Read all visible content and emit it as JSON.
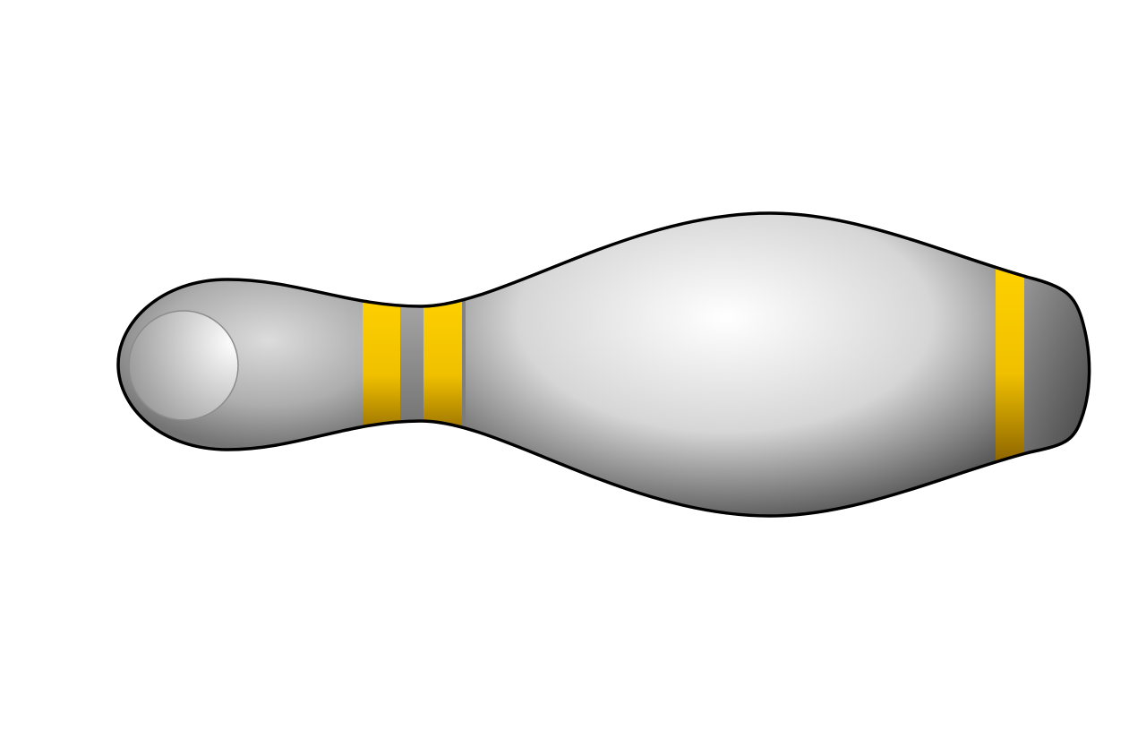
{
  "image": {
    "subject": "bowling-pin",
    "colors": {
      "background": "#ffffff",
      "outline": "#000000",
      "body_light": "#ffffff",
      "body_mid": "#d6d6d6",
      "body_dark": "#555555",
      "stripe_light": "#ffd200",
      "stripe_dark": "#8a6200",
      "band_gray": "#a0a0a0"
    }
  }
}
